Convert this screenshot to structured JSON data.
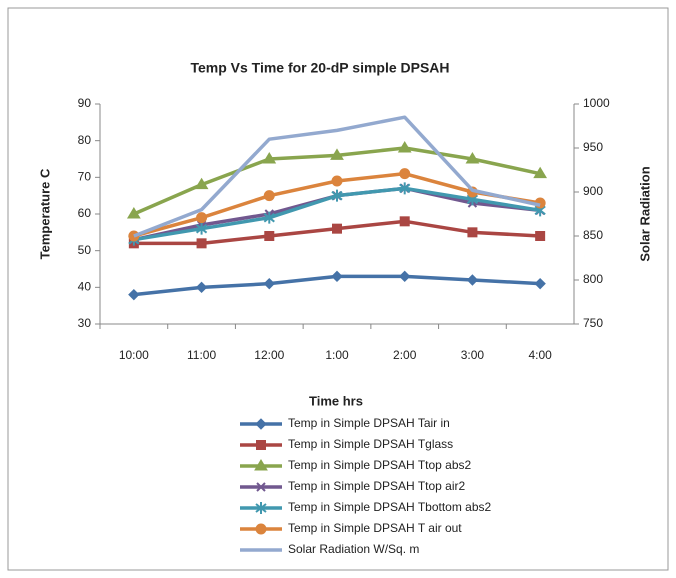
{
  "chart_data": {
    "type": "line",
    "title": "Temp Vs Time for 20-dP simple DPSAH",
    "x_label": "Time hrs",
    "y_label": "Temperature C",
    "y2_label": "Solar Radiation",
    "categories": [
      "10:00",
      "11:00",
      "12:00",
      "1:00",
      "2:00",
      "3:00",
      "4:00"
    ],
    "ylim": [
      30,
      90
    ],
    "yticks": [
      30,
      40,
      50,
      60,
      70,
      80,
      90
    ],
    "y2lim": [
      750,
      1000
    ],
    "y2ticks": [
      750,
      800,
      850,
      900,
      950,
      1000
    ],
    "series": [
      {
        "name": "Temp in Simple DPSAH Tair in",
        "color": "#4572a7",
        "marker": "diamond",
        "values": [
          38,
          40,
          41,
          43,
          43,
          42,
          41
        ]
      },
      {
        "name": "Temp in Simple DPSAH Tglass",
        "color": "#aa4643",
        "marker": "square",
        "values": [
          52,
          52,
          54,
          56,
          58,
          55,
          54
        ]
      },
      {
        "name": "Temp in Simple DPSAH Ttop abs2",
        "color": "#89a54e",
        "marker": "triangle",
        "values": [
          60,
          68,
          75,
          76,
          78,
          75,
          71
        ]
      },
      {
        "name": "Temp in Simple DPSAH Ttop air2",
        "color": "#71588f",
        "marker": "x",
        "values": [
          53,
          57,
          60,
          65,
          67,
          63,
          61
        ]
      },
      {
        "name": "Temp in Simple DPSAH Tbottom abs2",
        "color": "#4198af",
        "marker": "star",
        "values": [
          53,
          56,
          59,
          65,
          67,
          64,
          61
        ]
      },
      {
        "name": "Temp in Simple DPSAH T air out",
        "color": "#db843d",
        "marker": "circle",
        "values": [
          54,
          59,
          65,
          69,
          71,
          66,
          63
        ]
      },
      {
        "name": "Solar Radiation W/Sq. m",
        "color": "#93a9cf",
        "marker": "none",
        "axis": "y2",
        "values": [
          850,
          880,
          960,
          970,
          985,
          902,
          885
        ]
      }
    ]
  }
}
